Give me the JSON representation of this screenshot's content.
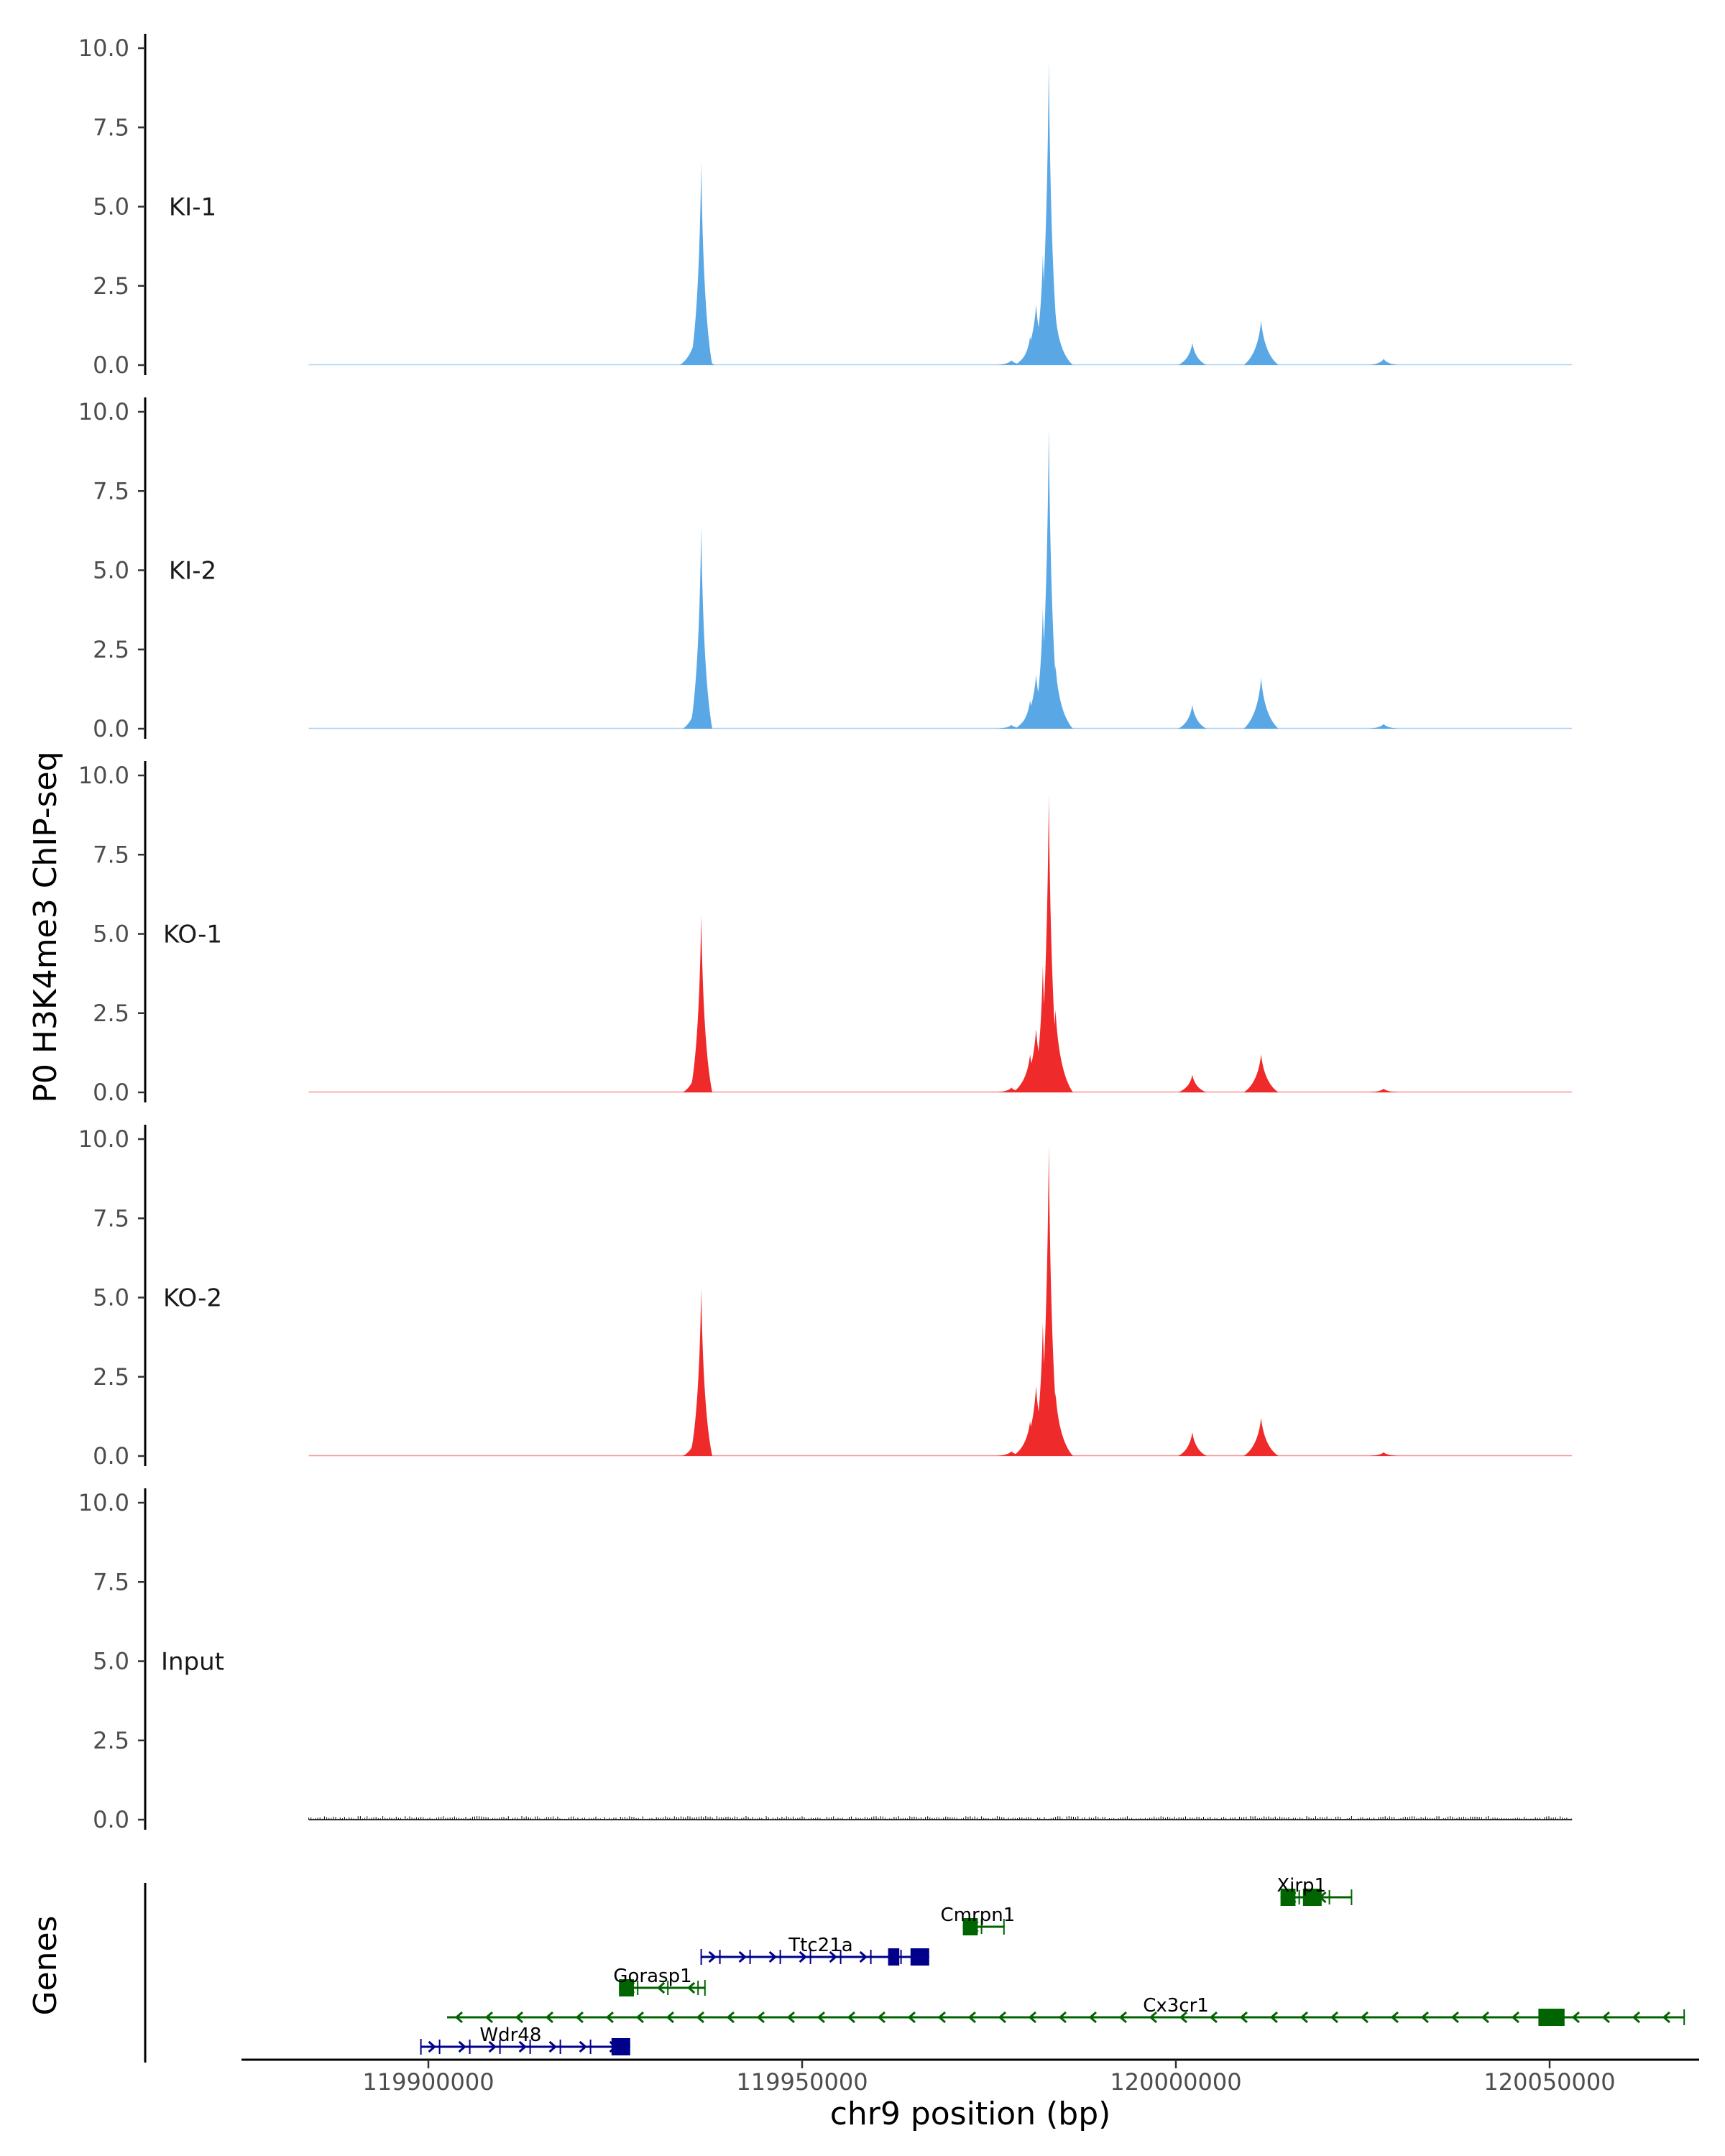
{
  "chart_data": {
    "type": "area",
    "ylabel": "P0 H3K4me3 ChIP-seq",
    "xlabel": "chr9 position (bp)",
    "xlim": [
      119875000,
      120070000
    ],
    "ylim": [
      0,
      10
    ],
    "y_ticks": [
      0,
      2.5,
      5,
      7.5,
      10
    ],
    "y_tick_labels": [
      "0.0",
      "2.5",
      "5.0",
      "7.5",
      "10.0"
    ],
    "x_ticks": [
      119900000,
      119950000,
      120000000,
      120050000
    ],
    "x_tick_labels": [
      "119900000",
      "119950000",
      "120000000",
      "120050000"
    ],
    "colors": {
      "KI": "#5aa7e6",
      "KO": "#ee2a2a",
      "Input": "#000000",
      "gene_plus": "#00008b",
      "gene_minus": "#006400"
    },
    "tracks": [
      {
        "name": "KI-1",
        "group": "KI",
        "peaks": [
          {
            "x": 119936500,
            "y": 6.4
          },
          {
            "x": 119935950,
            "y": 1.2
          },
          {
            "x": 119983000,
            "y": 9.6
          },
          {
            "x": 119982200,
            "y": 3.5
          },
          {
            "x": 119981300,
            "y": 1.9
          },
          {
            "x": 119980500,
            "y": 0.9
          },
          {
            "x": 119983900,
            "y": 1.6
          },
          {
            "x": 119978000,
            "y": 0.15
          },
          {
            "x": 120002200,
            "y": 0.7
          },
          {
            "x": 120011400,
            "y": 1.4
          },
          {
            "x": 120027800,
            "y": 0.2
          }
        ]
      },
      {
        "name": "KI-2",
        "group": "KI",
        "peaks": [
          {
            "x": 119936500,
            "y": 6.4
          },
          {
            "x": 119935950,
            "y": 1.0
          },
          {
            "x": 119983000,
            "y": 9.5
          },
          {
            "x": 119982200,
            "y": 3.8
          },
          {
            "x": 119981300,
            "y": 1.7
          },
          {
            "x": 119980500,
            "y": 0.9
          },
          {
            "x": 119983900,
            "y": 2.0
          },
          {
            "x": 119978000,
            "y": 0.12
          },
          {
            "x": 120002200,
            "y": 0.75
          },
          {
            "x": 120011400,
            "y": 1.6
          },
          {
            "x": 120027800,
            "y": 0.15
          }
        ]
      },
      {
        "name": "KO-1",
        "group": "KO",
        "peaks": [
          {
            "x": 119936500,
            "y": 5.6
          },
          {
            "x": 119935950,
            "y": 0.9
          },
          {
            "x": 119983000,
            "y": 9.4
          },
          {
            "x": 119982200,
            "y": 4.0
          },
          {
            "x": 119981300,
            "y": 2.0
          },
          {
            "x": 119980500,
            "y": 1.2
          },
          {
            "x": 119983900,
            "y": 2.6
          },
          {
            "x": 119978000,
            "y": 0.15
          },
          {
            "x": 120002200,
            "y": 0.55
          },
          {
            "x": 120011400,
            "y": 1.2
          },
          {
            "x": 120027800,
            "y": 0.12
          }
        ]
      },
      {
        "name": "KO-2",
        "group": "KO",
        "peaks": [
          {
            "x": 119936500,
            "y": 5.3
          },
          {
            "x": 119935950,
            "y": 0.8
          },
          {
            "x": 119983000,
            "y": 9.8
          },
          {
            "x": 119982200,
            "y": 4.2
          },
          {
            "x": 119981300,
            "y": 2.2
          },
          {
            "x": 119980500,
            "y": 1.1
          },
          {
            "x": 119983900,
            "y": 2.0
          },
          {
            "x": 119978000,
            "y": 0.15
          },
          {
            "x": 120002200,
            "y": 0.75
          },
          {
            "x": 120011400,
            "y": 1.2
          },
          {
            "x": 120027800,
            "y": 0.12
          }
        ]
      },
      {
        "name": "Input",
        "group": "Input",
        "peaks": []
      }
    ],
    "genes_label": "Genes",
    "genes": [
      {
        "name": "Xirp1",
        "strand": "-",
        "start": 120014000,
        "end": 120023500,
        "row": 0,
        "exons": [
          [
            120014000,
            120016000
          ],
          [
            120017000,
            120019500
          ]
        ]
      },
      {
        "name": "Cmrpn1",
        "strand": "-",
        "start": 119971500,
        "end": 119977000,
        "row": 1,
        "exons": [
          [
            119971500,
            119973500
          ]
        ]
      },
      {
        "name": "Ttc21a",
        "strand": "+",
        "start": 119936500,
        "end": 119967000,
        "row": 2,
        "exons": [
          [
            119961500,
            119963000
          ],
          [
            119964500,
            119967000
          ]
        ]
      },
      {
        "name": "Gorasp1",
        "strand": "-",
        "start": 119925500,
        "end": 119937000,
        "row": 3,
        "exons": [
          [
            119925500,
            119927500
          ]
        ]
      },
      {
        "name": "Cx3cr1",
        "strand": "-",
        "start": 119902500,
        "end": 120068000,
        "row": 4,
        "exons": [
          [
            120048500,
            120052000
          ]
        ]
      },
      {
        "name": "Wdr48",
        "strand": "+",
        "start": 119899000,
        "end": 119927000,
        "row": 5,
        "exons": [
          [
            119924500,
            119927000
          ]
        ]
      }
    ]
  }
}
